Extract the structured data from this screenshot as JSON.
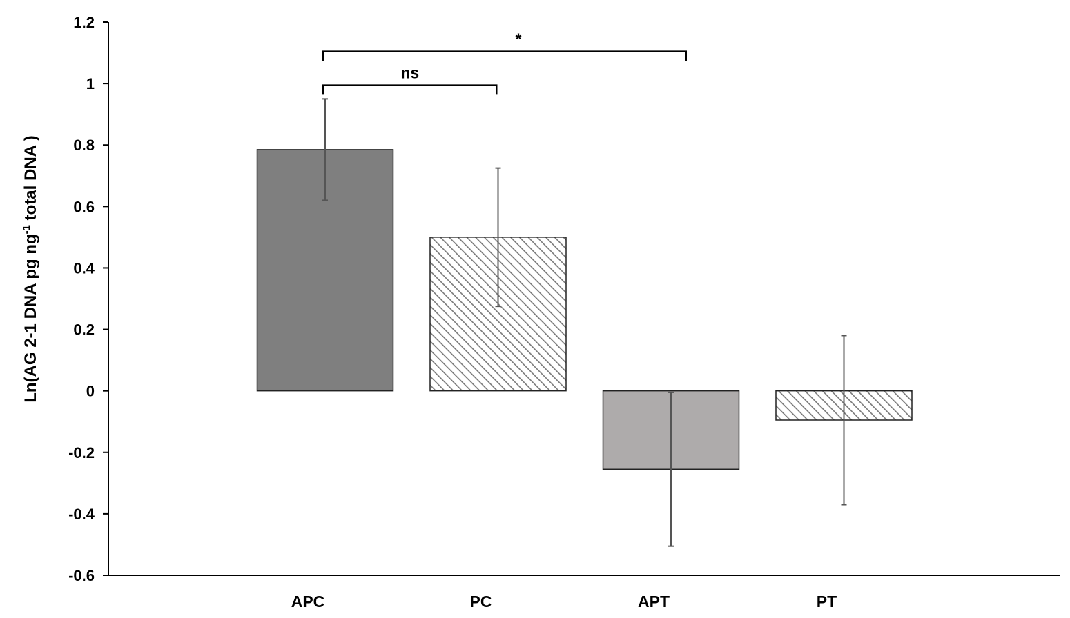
{
  "chart_data": {
    "type": "bar",
    "title": "",
    "xlabel": "",
    "ylabel_main": "Ln(AG 2-1 DNA pg ng",
    "ylabel_sup": "-1",
    "ylabel_tail": " total DNA )",
    "categories": [
      "APC",
      "PC",
      "APT",
      "PT"
    ],
    "values": [
      0.785,
      0.5,
      -0.255,
      -0.095
    ],
    "errors": [
      0.165,
      0.225,
      0.25,
      0.275
    ],
    "fills": [
      "solid-dark",
      "hatch",
      "solid-light",
      "hatch"
    ],
    "ylim": [
      -0.6,
      1.2
    ],
    "yticks": [
      "-0.6",
      "-0.4",
      "-0.2",
      "0",
      "0.2",
      "0.4",
      "0.6",
      "0.8",
      "1",
      "1.2"
    ],
    "grid": false,
    "legend": "none",
    "significance": [
      {
        "from": "APC",
        "to": "APT",
        "label": "*",
        "y": 1.105
      },
      {
        "from": "APC",
        "to": "PC",
        "label": "ns",
        "y": 0.995
      }
    ]
  },
  "colors": {
    "solid_dark": "#7f7f7f",
    "solid_light": "#aeabab",
    "hatch_line": "#7a7a7a",
    "error_bar": "#555555",
    "axis": "#000000"
  }
}
